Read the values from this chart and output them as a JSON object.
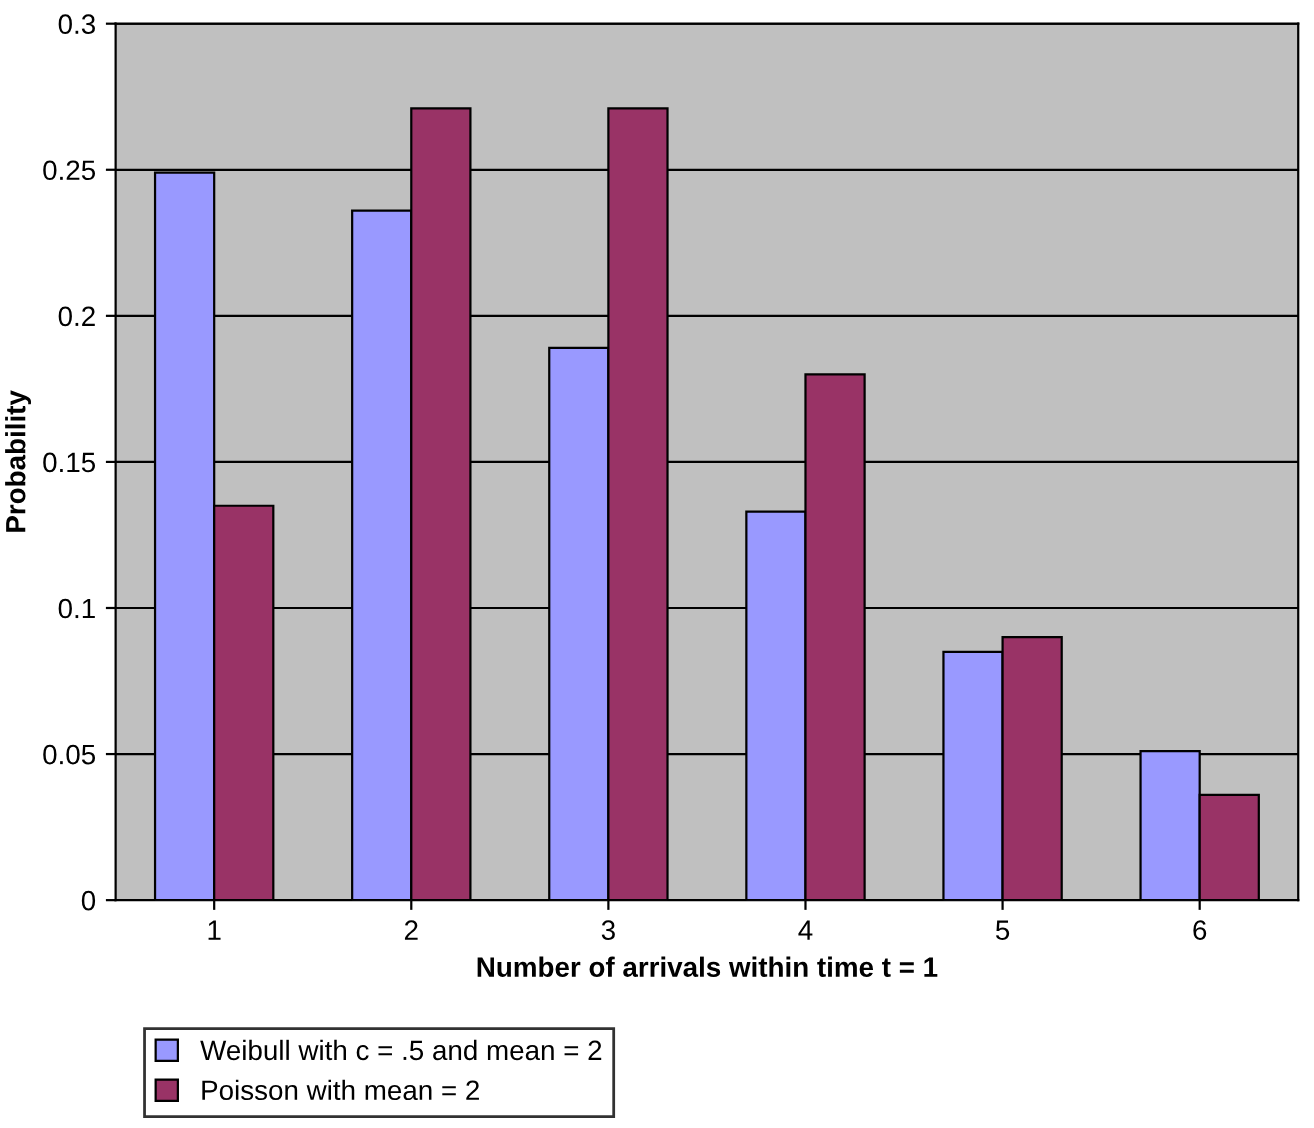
{
  "chart_data": {
    "type": "bar",
    "xlabel": "Number of arrivals within time t = 1",
    "ylabel": "Probability",
    "categories": [
      "1",
      "2",
      "3",
      "4",
      "5",
      "6"
    ],
    "series": [
      {
        "name": "Weibull with c = .5 and mean = 2",
        "color": "#9999ff",
        "values": [
          0.249,
          0.236,
          0.189,
          0.133,
          0.085,
          0.051
        ]
      },
      {
        "name": "Poisson with mean = 2",
        "color": "#993366",
        "values": [
          0.135,
          0.271,
          0.271,
          0.18,
          0.09,
          0.036
        ]
      }
    ],
    "ylim": [
      0,
      0.3
    ],
    "yticks": [
      0,
      0.05,
      0.1,
      0.15,
      0.2,
      0.25,
      0.3
    ],
    "grid": "y",
    "legend": "bottom left"
  }
}
